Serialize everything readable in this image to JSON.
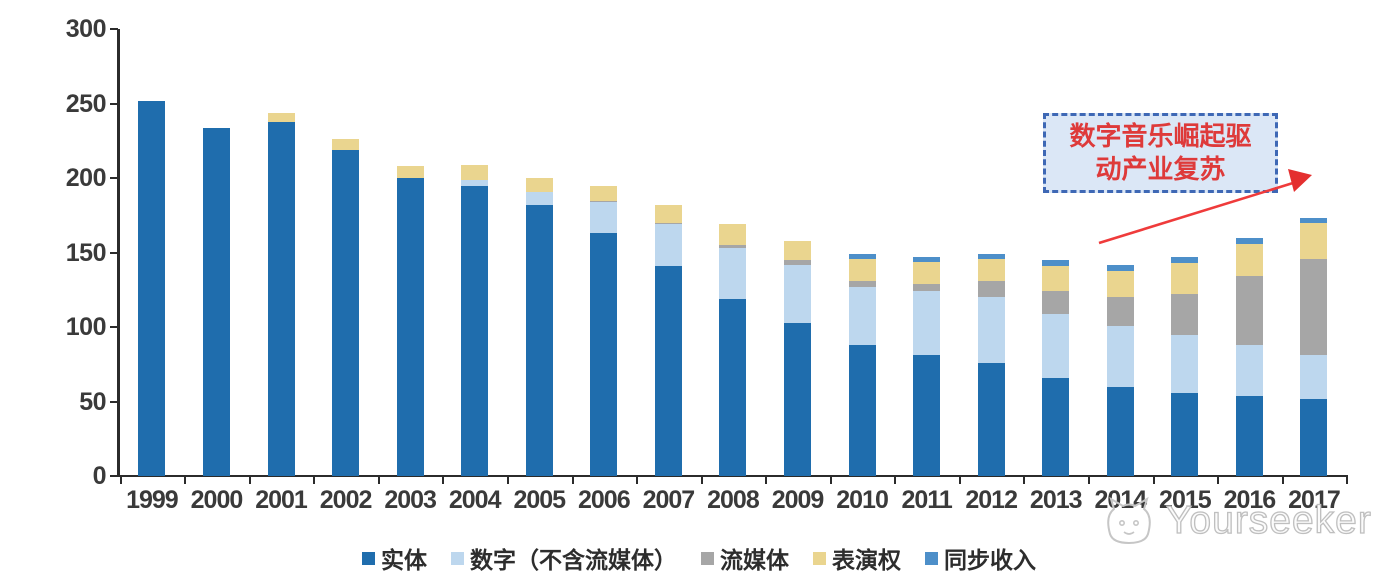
{
  "chart_data": {
    "type": "bar",
    "stacked": true,
    "categories": [
      "1999",
      "2000",
      "2001",
      "2002",
      "2003",
      "2004",
      "2005",
      "2006",
      "2007",
      "2008",
      "2009",
      "2010",
      "2011",
      "2012",
      "2013",
      "2014",
      "2015",
      "2016",
      "2017"
    ],
    "series": [
      {
        "name": "实体",
        "color": "#1f6dad",
        "values": [
          252,
          234,
          238,
          219,
          200,
          195,
          182,
          163,
          141,
          119,
          103,
          88,
          81,
          76,
          66,
          60,
          56,
          54,
          52
        ]
      },
      {
        "name": "数字（不含流媒体）",
        "color": "#bdd7ee",
        "values": [
          0,
          0,
          0,
          0,
          0,
          4,
          9,
          21,
          28,
          34,
          39,
          39,
          43,
          44,
          43,
          41,
          39,
          34,
          29
        ]
      },
      {
        "name": "流媒体",
        "color": "#a6a6a6",
        "values": [
          0,
          0,
          0,
          0,
          0,
          0,
          0,
          1,
          1,
          2,
          3,
          4,
          5,
          11,
          15,
          19,
          27,
          46,
          65
        ]
      },
      {
        "name": "表演权",
        "color": "#ead58f",
        "values": [
          0,
          0,
          6,
          7,
          8,
          10,
          9,
          10,
          12,
          14,
          13,
          15,
          15,
          15,
          17,
          18,
          21,
          22,
          24
        ]
      },
      {
        "name": "同步收入",
        "color": "#4d8fc9",
        "values": [
          0,
          0,
          0,
          0,
          0,
          0,
          0,
          0,
          0,
          0,
          0,
          3,
          3,
          3,
          4,
          4,
          4,
          4,
          3
        ]
      }
    ],
    "ylim": [
      0,
      300
    ],
    "yticks": [
      0,
      50,
      100,
      150,
      200,
      250,
      300
    ],
    "xlabel": "",
    "ylabel": "",
    "title": "",
    "grid": false,
    "legend_position": "bottom"
  },
  "annotation": {
    "line1": "数字音乐崛起驱",
    "line2": "动产业复苏",
    "text_color": "#de3a3a",
    "box_fill": "#dbe7f6",
    "box_border_color": "#3e68b5",
    "arrow_color": "#ef3b3b"
  },
  "watermark": {
    "text": "Yourseeker"
  }
}
